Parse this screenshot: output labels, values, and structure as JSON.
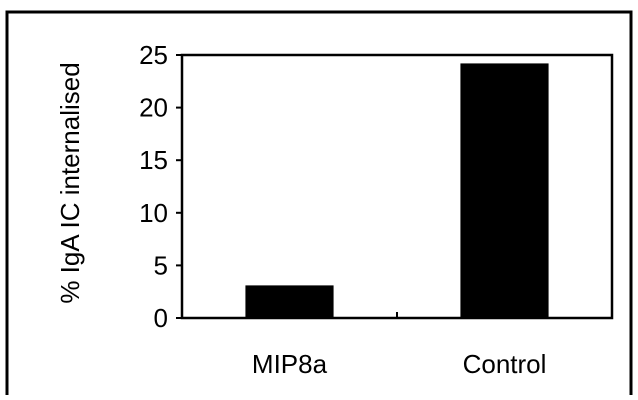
{
  "chart_data": {
    "type": "bar",
    "title": "",
    "xlabel": "",
    "ylabel": "% IgA IC internalised",
    "categories": [
      "MIP8a",
      "Control"
    ],
    "values": [
      3.1,
      24.2
    ],
    "ylim": [
      0,
      25
    ],
    "yticks": [
      0,
      5,
      10,
      15,
      20,
      25
    ],
    "grid": false,
    "legend": "none",
    "bar_color": "#000000",
    "frame_color": "#000000"
  }
}
